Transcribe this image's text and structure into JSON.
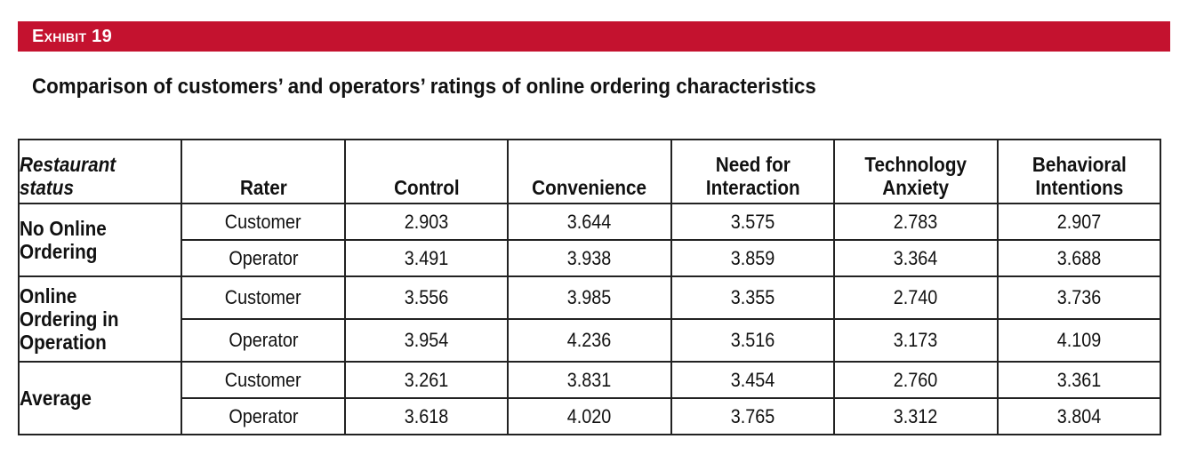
{
  "header": {
    "exhibit_label": "Exhibit 19",
    "title": "Comparison of customers’ and operators’ ratings of online ordering characteristics"
  },
  "table": {
    "columns": [
      "Restaurant status",
      "Rater",
      "Control",
      "Convenience",
      "Need for Interaction",
      "Technology Anxiety",
      "Behavioral Intentions"
    ],
    "column_lines": [
      [
        "Restaurant",
        "status"
      ],
      [
        "Rater"
      ],
      [
        "Control"
      ],
      [
        "Convenience"
      ],
      [
        "Need for",
        "Interaction"
      ],
      [
        "Technology",
        "Anxiety"
      ],
      [
        "Behavioral",
        "Intentions"
      ]
    ],
    "groups": [
      {
        "status_lines": [
          "No Online",
          "Ordering"
        ],
        "rows": [
          {
            "rater": "Customer",
            "values": [
              "2.903",
              "3.644",
              "3.575",
              "2.783",
              "2.907"
            ]
          },
          {
            "rater": "Operator",
            "values": [
              "3.491",
              "3.938",
              "3.859",
              "3.364",
              "3.688"
            ]
          }
        ]
      },
      {
        "status_lines": [
          "Online",
          "Ordering in",
          "Operation"
        ],
        "rows": [
          {
            "rater": "Customer",
            "values": [
              "3.556",
              "3.985",
              "3.355",
              "2.740",
              "3.736"
            ]
          },
          {
            "rater": "Operator",
            "values": [
              "3.954",
              "4.236",
              "3.516",
              "3.173",
              "4.109"
            ]
          }
        ]
      },
      {
        "status_lines": [
          "Average"
        ],
        "rows": [
          {
            "rater": "Customer",
            "values": [
              "3.261",
              "3.831",
              "3.454",
              "2.760",
              "3.361"
            ]
          },
          {
            "rater": "Operator",
            "values": [
              "3.618",
              "4.020",
              "3.765",
              "3.312",
              "3.804"
            ]
          }
        ]
      }
    ]
  }
}
